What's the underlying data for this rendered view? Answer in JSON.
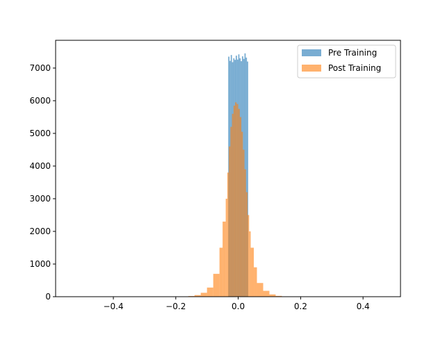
{
  "chart_data": {
    "type": "bar",
    "title": "",
    "xlabel": "",
    "ylabel": "",
    "xlim": [
      -0.585,
      0.52
    ],
    "ylim": [
      0,
      7850
    ],
    "grid": false,
    "legend_position": "top-right",
    "x_ticks": [
      -0.4,
      -0.2,
      0.0,
      0.2,
      0.4
    ],
    "x_tick_labels": [
      "−0.4",
      "−0.2",
      "0.0",
      "0.2",
      "0.4"
    ],
    "y_ticks": [
      0,
      1000,
      2000,
      3000,
      4000,
      5000,
      6000,
      7000
    ],
    "y_tick_labels": [
      "0",
      "1000",
      "2000",
      "3000",
      "4000",
      "5000",
      "6000",
      "7000"
    ],
    "series": [
      {
        "name": "Pre Training",
        "color": "#1f77b4",
        "opacity": 0.6,
        "bin_edges": [
          -0.032,
          -0.028,
          -0.024,
          -0.02,
          -0.016,
          -0.012,
          -0.008,
          -0.004,
          0.0,
          0.004,
          0.008,
          0.012,
          0.016,
          0.02,
          0.024,
          0.028,
          0.032
        ],
        "counts": [
          7350,
          7220,
          7400,
          7180,
          7300,
          7250,
          7380,
          7260,
          7420,
          7300,
          7210,
          7360,
          7280,
          7450,
          7320,
          7200
        ]
      },
      {
        "name": "Post Training",
        "color": "#ff7f0e",
        "opacity": 0.6,
        "bin_edges": [
          -0.16,
          -0.14,
          -0.12,
          -0.1,
          -0.08,
          -0.06,
          -0.05,
          -0.04,
          -0.035,
          -0.03,
          -0.025,
          -0.02,
          -0.015,
          -0.01,
          -0.005,
          0.0,
          0.005,
          0.01,
          0.015,
          0.02,
          0.025,
          0.03,
          0.035,
          0.04,
          0.05,
          0.06,
          0.08,
          0.1,
          0.12,
          0.14,
          0.16
        ],
        "counts": [
          20,
          50,
          120,
          280,
          700,
          1500,
          2300,
          3000,
          3800,
          4600,
          5200,
          5600,
          5850,
          5950,
          5900,
          5750,
          5500,
          5050,
          4500,
          3900,
          3200,
          2500,
          2000,
          1500,
          900,
          420,
          180,
          70,
          25,
          8
        ]
      }
    ]
  }
}
